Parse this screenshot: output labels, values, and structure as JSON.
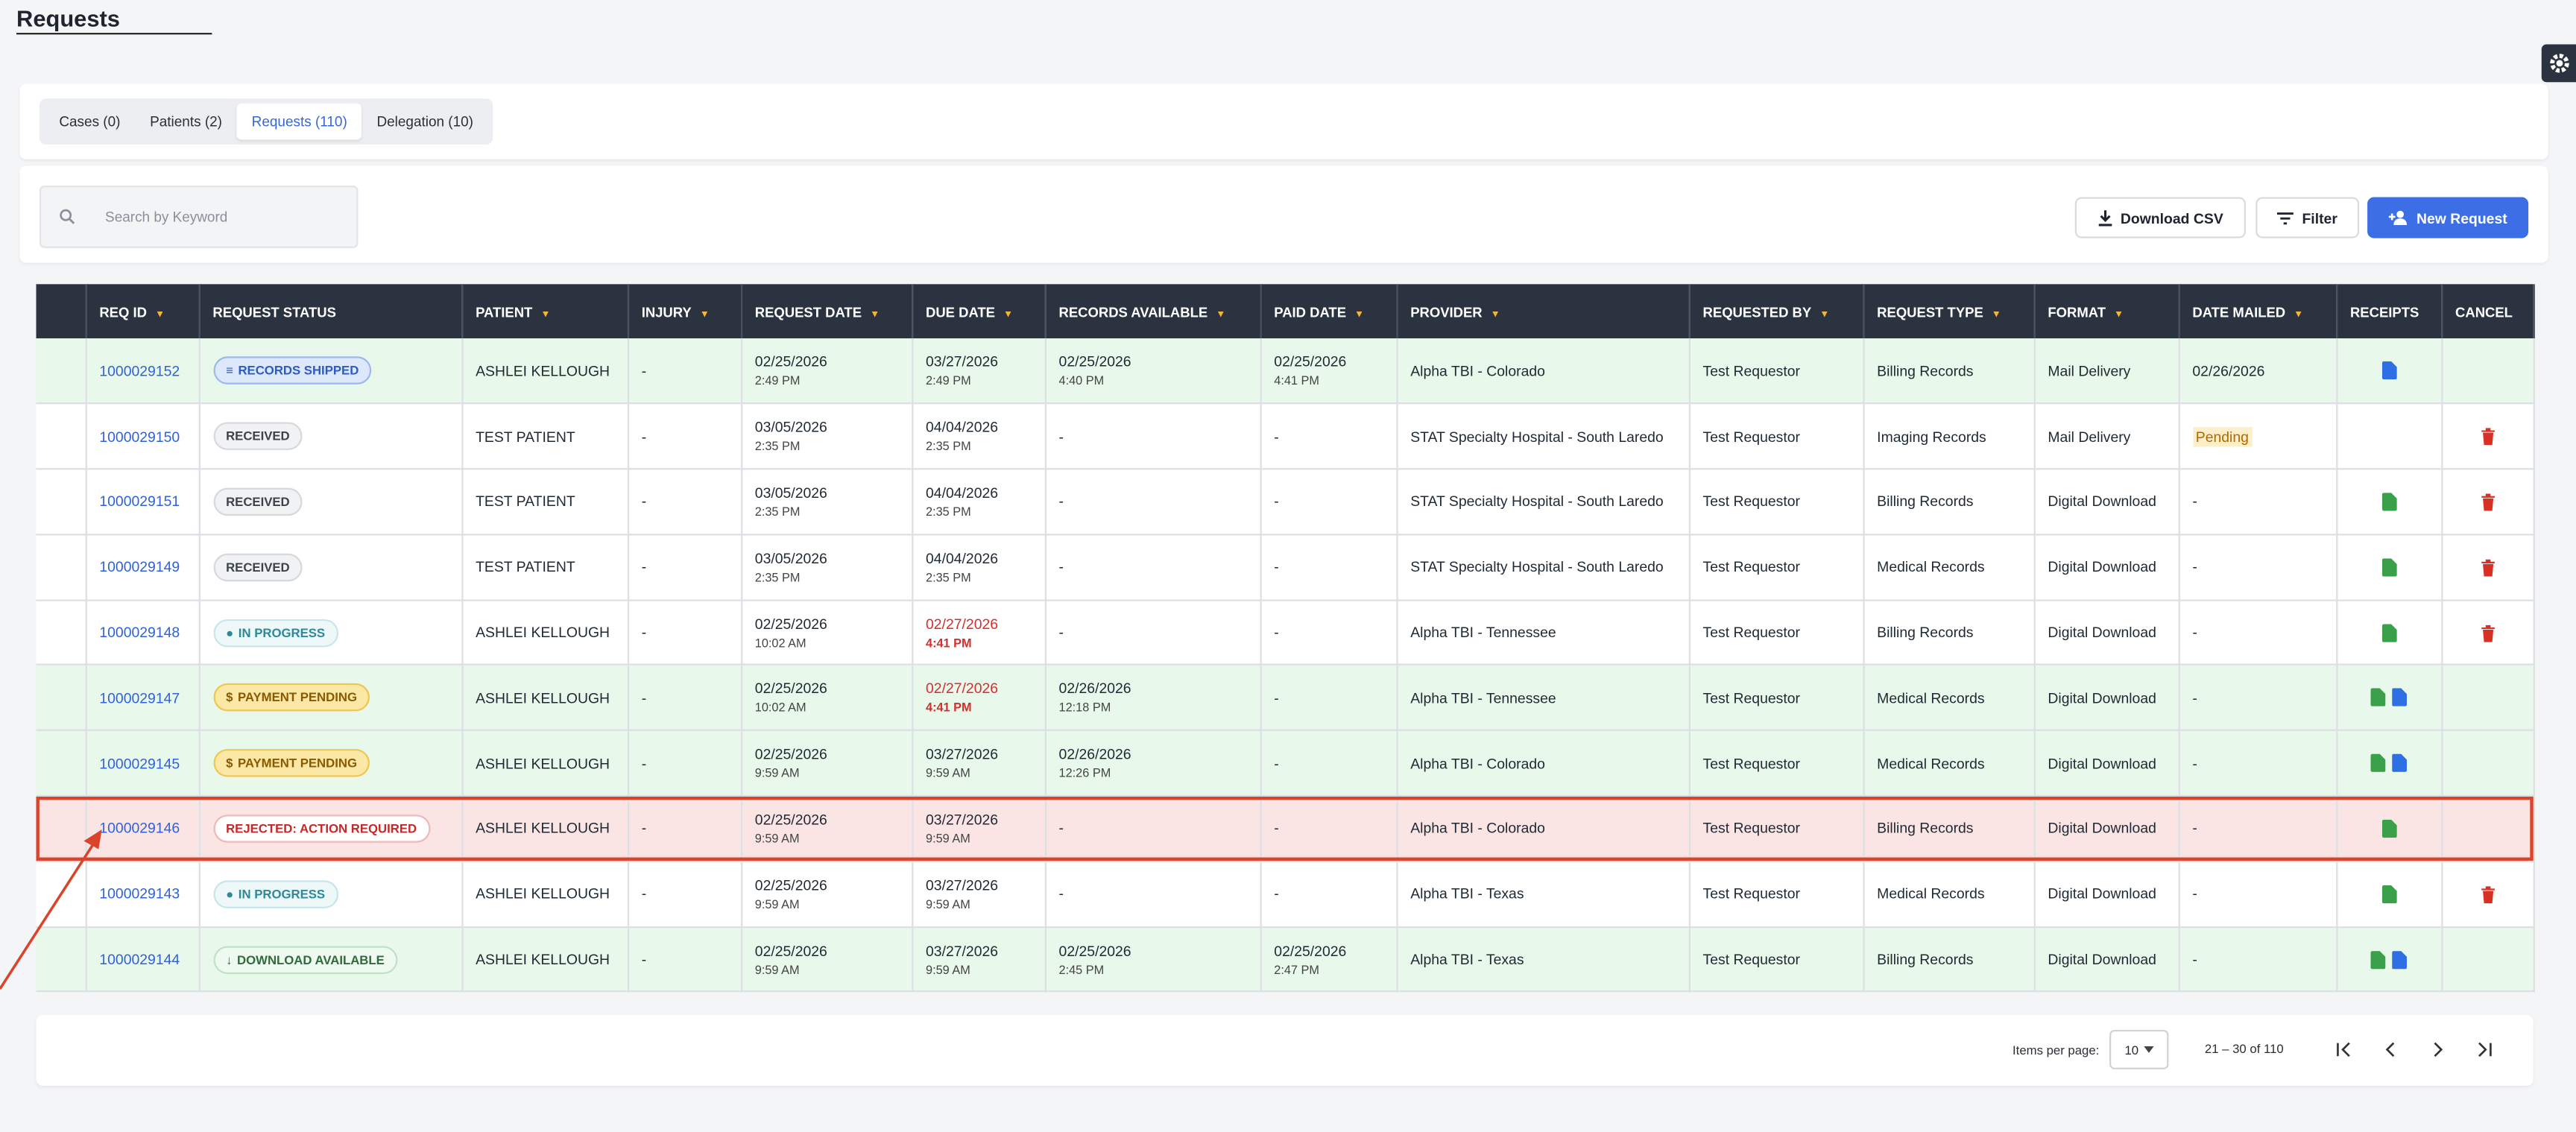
{
  "header": {
    "title": "Requests"
  },
  "tabs": {
    "items": [
      "Cases (0)",
      "Patients (2)",
      "Requests (110)",
      "Delegation (10)"
    ],
    "active": 2
  },
  "toolbar": {
    "search_placeholder": "Search by Keyword",
    "download": "Download CSV",
    "filter": "Filter",
    "new_request": "New Request"
  },
  "table": {
    "columns": [
      {
        "label": "",
        "sortable": false
      },
      {
        "label": "REQ ID",
        "sortable": true
      },
      {
        "label": "REQUEST STATUS",
        "sortable": false
      },
      {
        "label": "PATIENT",
        "sortable": true
      },
      {
        "label": "INJURY",
        "sortable": true
      },
      {
        "label": "REQUEST DATE",
        "sortable": true
      },
      {
        "label": "DUE DATE",
        "sortable": true
      },
      {
        "label": "RECORDS AVAILABLE",
        "sortable": true
      },
      {
        "label": "PAID DATE",
        "sortable": true
      },
      {
        "label": "PROVIDER",
        "sortable": true
      },
      {
        "label": "REQUESTED BY",
        "sortable": true
      },
      {
        "label": "REQUEST TYPE",
        "sortable": true
      },
      {
        "label": "FORMAT",
        "sortable": true
      },
      {
        "label": "DATE MAILED",
        "sortable": true
      },
      {
        "label": "RECEIPTS",
        "sortable": false
      },
      {
        "label": "CANCEL",
        "sortable": false
      }
    ],
    "rows": [
      {
        "req_id": "1000029152",
        "status": {
          "icon": "≡",
          "text": "RECORDS SHIPPED",
          "badge": "blue"
        },
        "patient": "ASHLEI KELLOUGH",
        "injury": "-",
        "request_date": [
          "02/25/2026",
          "2:49 PM"
        ],
        "due_date": [
          "03/27/2026",
          "2:49 PM"
        ],
        "records_available": [
          "02/25/2026",
          "4:40 PM"
        ],
        "paid_date": [
          "02/25/2026",
          "4:41 PM"
        ],
        "provider": "Alpha TBI - Colorado",
        "requested_by": "Test Requestor",
        "request_type": "Billing Records",
        "format": "Mail Delivery",
        "date_mailed": "02/26/2026",
        "receipts": [
          "blue"
        ],
        "cancel": false,
        "tone": "green"
      },
      {
        "req_id": "1000029150",
        "status": {
          "text": "RECEIVED",
          "badge": "gray"
        },
        "patient": "TEST PATIENT",
        "injury": "-",
        "request_date": [
          "03/05/2026",
          "2:35 PM"
        ],
        "due_date": [
          "04/04/2026",
          "2:35 PM"
        ],
        "records_available": [
          "-"
        ],
        "paid_date": [
          "-"
        ],
        "provider": "STAT Specialty Hospital - South Laredo",
        "requested_by": "Test Requestor",
        "request_type": "Imaging Records",
        "format": "Mail Delivery",
        "date_mailed": "Pending",
        "mailed_highlight": "#fcefc9",
        "receipts": [],
        "cancel": true,
        "tone": "white"
      },
      {
        "req_id": "1000029151",
        "status": {
          "text": "RECEIVED",
          "badge": "gray"
        },
        "patient": "TEST PATIENT",
        "injury": "-",
        "request_date": [
          "03/05/2026",
          "2:35 PM"
        ],
        "due_date": [
          "04/04/2026",
          "2:35 PM"
        ],
        "records_available": [
          "-"
        ],
        "paid_date": [
          "-"
        ],
        "provider": "STAT Specialty Hospital - South Laredo",
        "requested_by": "Test Requestor",
        "request_type": "Billing Records",
        "format": "Digital Download",
        "date_mailed": "-",
        "receipts": [
          "green"
        ],
        "cancel": true,
        "tone": "white"
      },
      {
        "req_id": "1000029149",
        "status": {
          "text": "RECEIVED",
          "badge": "gray"
        },
        "patient": "TEST PATIENT",
        "injury": "-",
        "request_date": [
          "03/05/2026",
          "2:35 PM"
        ],
        "due_date": [
          "04/04/2026",
          "2:35 PM"
        ],
        "records_available": [
          "-"
        ],
        "paid_date": [
          "-"
        ],
        "provider": "STAT Specialty Hospital - South Laredo",
        "requested_by": "Test Requestor",
        "request_type": "Medical Records",
        "format": "Digital Download",
        "date_mailed": "-",
        "receipts": [
          "green"
        ],
        "cancel": true,
        "tone": "white"
      },
      {
        "req_id": "1000029148",
        "status": {
          "icon": "●",
          "text": "IN PROGRESS",
          "badge": "teal"
        },
        "patient": "ASHLEI KELLOUGH",
        "injury": "-",
        "request_date": [
          "02/25/2026",
          "10:02 AM"
        ],
        "due_date": [
          "02/27/2026",
          "4:41 PM"
        ],
        "due_color": "#d32f2f",
        "records_available": [
          "-"
        ],
        "paid_date": [
          "-"
        ],
        "provider": "Alpha TBI - Tennessee",
        "requested_by": "Test Requestor",
        "request_type": "Billing Records",
        "format": "Digital Download",
        "date_mailed": "-",
        "receipts": [
          "green"
        ],
        "cancel": true,
        "tone": "white"
      },
      {
        "req_id": "1000029147",
        "status": {
          "icon": "$",
          "text": "PAYMENT PENDING",
          "badge": "yellow"
        },
        "patient": "ASHLEI KELLOUGH",
        "injury": "-",
        "request_date": [
          "02/25/2026",
          "10:02 AM"
        ],
        "due_date": [
          "02/27/2026",
          "4:41 PM"
        ],
        "due_color": "#d32f2f",
        "records_available": [
          "02/26/2026",
          "12:18 PM"
        ],
        "paid_date": [
          "-"
        ],
        "provider": "Alpha TBI - Tennessee",
        "requested_by": "Test Requestor",
        "request_type": "Medical Records",
        "format": "Digital Download",
        "date_mailed": "-",
        "receipts": [
          "green",
          "blue"
        ],
        "cancel": false,
        "tone": "green"
      },
      {
        "req_id": "1000029145",
        "status": {
          "icon": "$",
          "text": "PAYMENT PENDING",
          "badge": "yellow"
        },
        "patient": "ASHLEI KELLOUGH",
        "injury": "-",
        "request_date": [
          "02/25/2026",
          "9:59 AM"
        ],
        "due_date": [
          "03/27/2026",
          "9:59 AM"
        ],
        "records_available": [
          "02/26/2026",
          "12:26 PM"
        ],
        "paid_date": [
          "-"
        ],
        "provider": "Alpha TBI - Colorado",
        "requested_by": "Test Requestor",
        "request_type": "Medical Records",
        "format": "Digital Download",
        "date_mailed": "-",
        "receipts": [
          "green",
          "blue"
        ],
        "cancel": false,
        "tone": "green"
      },
      {
        "req_id": "1000029146",
        "status": {
          "text": "REJECTED: ACTION REQUIRED",
          "badge": "red"
        },
        "patient": "ASHLEI KELLOUGH",
        "injury": "-",
        "request_date": [
          "02/25/2026",
          "9:59 AM"
        ],
        "due_date": [
          "03/27/2026",
          "9:59 AM"
        ],
        "records_available": [
          "-"
        ],
        "paid_date": [
          "-"
        ],
        "provider": "Alpha TBI - Colorado",
        "requested_by": "Test Requestor",
        "request_type": "Billing Records",
        "format": "Digital Download",
        "date_mailed": "-",
        "receipts": [
          "green"
        ],
        "cancel": false,
        "tone": "pink"
      },
      {
        "req_id": "1000029143",
        "status": {
          "icon": "●",
          "text": "IN PROGRESS",
          "badge": "teal"
        },
        "patient": "ASHLEI KELLOUGH",
        "injury": "-",
        "request_date": [
          "02/25/2026",
          "9:59 AM"
        ],
        "due_date": [
          "03/27/2026",
          "9:59 AM"
        ],
        "records_available": [
          "-"
        ],
        "paid_date": [
          "-"
        ],
        "provider": "Alpha TBI - Texas",
        "requested_by": "Test Requestor",
        "request_type": "Medical Records",
        "format": "Digital Download",
        "date_mailed": "-",
        "receipts": [
          "green"
        ],
        "cancel": true,
        "tone": "white"
      },
      {
        "req_id": "1000029144",
        "status": {
          "icon": "↓",
          "text": "DOWNLOAD AVAILABLE",
          "badge": "green"
        },
        "patient": "ASHLEI KELLOUGH",
        "injury": "-",
        "request_date": [
          "02/25/2026",
          "9:59 AM"
        ],
        "due_date": [
          "03/27/2026",
          "9:59 AM"
        ],
        "records_available": [
          "02/25/2026",
          "2:45 PM"
        ],
        "paid_date": [
          "02/25/2026",
          "2:47 PM"
        ],
        "provider": "Alpha TBI - Texas",
        "requested_by": "Test Requestor",
        "request_type": "Billing Records",
        "format": "Digital Download",
        "date_mailed": "-",
        "receipts": [
          "green",
          "blue"
        ],
        "cancel": false,
        "tone": "green"
      }
    ]
  },
  "pagination": {
    "items_label": "Items per page:",
    "items_value": "10",
    "range": "21 – 30 of 110"
  }
}
